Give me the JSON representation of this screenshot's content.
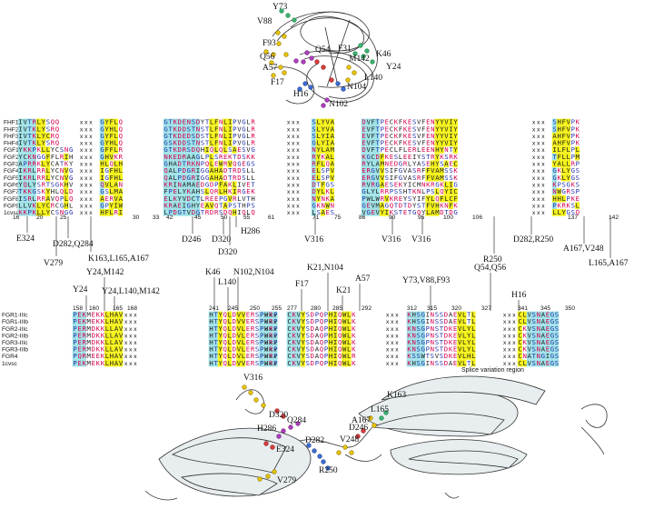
{
  "colors": {
    "yellow": "#f5f219",
    "cyan": "#9fe3e8",
    "red": "#d8004f",
    "blue": "#2233aa",
    "green": "#12884a",
    "ribbon": "#e8eef0"
  },
  "top_structure": {
    "labels": [
      "Y73",
      "V88",
      "F93",
      "Q54",
      "F31",
      "K46",
      "Q56",
      "A57",
      "M142",
      "Y24",
      "L140",
      "F17",
      "H16",
      "N104",
      "N102"
    ]
  },
  "fgf_block": {
    "rows": [
      "FHF1",
      "FHF2",
      "FHF3",
      "FHF4",
      "FGF1",
      "FGF2",
      "FGF3",
      "FGF4",
      "FGF5",
      "FGF6",
      "FGF7",
      "FGF8",
      "FGF9",
      "1cvsa"
    ],
    "sep": "x x x",
    "numbers": [
      "16",
      "20",
      "25",
      "30",
      "33",
      "42",
      "45",
      "50",
      "55",
      "61",
      "71",
      "75",
      "86",
      "90",
      "95",
      "100",
      "106",
      "137",
      "142"
    ],
    "below_labels": [
      "E324",
      "V279",
      "D282,Q284",
      "K163,L165,A167",
      "D246",
      "D320",
      "D320",
      "H286",
      "V316",
      "V316",
      "V316",
      "R250",
      "D282,R250",
      "A167,V248",
      "L165,A167"
    ]
  },
  "fgfr_block": {
    "rows": [
      "FGR1-IIIc",
      "FGR1-IIIb",
      "FGR2-IIIc",
      "FGR2-IIIb",
      "FGR3-IIIc",
      "FGR3-IIIb",
      "FGR4",
      "1cvsc"
    ],
    "sep": "x x x",
    "numbers": [
      "158",
      "160",
      "165",
      "168",
      "241",
      "245",
      "250",
      "255",
      "277",
      "280",
      "285",
      "292",
      "312",
      "315",
      "320",
      "327",
      "341",
      "345",
      "350"
    ],
    "above_labels": [
      "Y24",
      "Y24,M142",
      "Y24,L140,M142",
      "K46",
      "L140",
      "N102,N104",
      "F17",
      "K21,N104",
      "K21",
      "A57",
      "Y73,V88,F93",
      "Q54,Q56",
      "H16"
    ],
    "splice_text": "Splice variation region"
  },
  "bottom_structure": {
    "labels": [
      "V316",
      "D320",
      "H286",
      "Q284",
      "E324",
      "V279",
      "D282",
      "R250",
      "V248",
      "D246",
      "A167",
      "L165",
      "K163"
    ]
  },
  "sequences": {
    "fgf": [
      [
        "IVTRLYSQQ",
        "GYFLQ",
        "GTKDENSDYTLFNLIPVGLR",
        "SLYVA",
        "DVFTPECKFKESVFENYYVIY",
        "SHFVPK"
      ],
      [
        "IVTKLYSRQ",
        "GYHLQ",
        "GTKDDSTNSTLFNLIPVGLR",
        "SLYVA",
        "EVFTPECKFKESVFENYYVIY",
        "SHFVPK"
      ],
      [
        "IVTKLYCRQ",
        "GYFLQ",
        "GTKDEDSDSTLFNLIPVGLR",
        "SLYIA",
        "EVFTPECKFKESVFENYYVIY",
        "AHFVPK"
      ],
      [
        "IVTKLYSRQ",
        "GYHLQ",
        "GSKDDSTNSTLFNLIPVGLR",
        "GLYIA",
        "EVFTPECKFKESVFENYYVIY",
        "AHFVPK"
      ],
      [
        "YKKPKLLYCSNG",
        "GFFLR",
        "GTKDRSDQHIQLQLSAESVG",
        "NYLAM",
        "DVFTPECLFLERLEENHYNTY",
        "ILFLPL"
      ],
      [
        "YCKNGGFFLRIH",
        "GHVKR",
        "NKEDRAAGLPLSREKTDSKK",
        "RYKAL",
        "KGCDFKESLEEIYSTRYKSRK",
        "TFLLPM"
      ],
      [
        "APRRKLYCATKY",
        "HLQLH",
        "GHADTRKNPQLEWRVQGEGS",
        "RFLQA",
        "RYLAMNEDGRLYASEHYSAEC",
        "YALLRP"
      ],
      [
        "IKRLRRLYCNVG",
        "IGFHL",
        "QALPDGRIGGAHADTRDSLL",
        "ELSPV",
        "ERGVVSIFGVASRFFVAMSSK",
        "GKLYGS"
      ],
      [
        "IKRLRRLYCNVG",
        "IGFHL",
        "QALPDGRIGGAHADTRDSLL",
        "ELSPV",
        "ERGVVSIFGVASRFFVAMSSK",
        "GKLYGS"
      ],
      [
        "YQLYSRTSGKHV",
        "QVLAN",
        "KRINAMAEDGDPFAKLIVET",
        "DTFGS",
        "RVRGAESEKYICMNKRGKLIG",
        "KPSGKS"
      ],
      [
        "TKKGSKYHLQLD",
        "GSLMA",
        "FPELYKAHSLQRLHKIRGEK",
        "DYLKL",
        "GLYLRRPSSHTKNLPSLQYIC",
        "NWGRSP"
      ],
      [
        "ISRLRRAVQPLQ",
        "AERVA",
        "ELKYVDCTLREEPGVRLVTH",
        "NYNKA",
        "PWLWRVKREYSYIFYLQFLCF",
        "HHLPKE"
      ],
      [
        "LLVKLYCRCGHL",
        "GPYIW",
        "KRAEIGHYEAVQTAPSTHPS",
        "GKNWN",
        "GEVMAGQTDTDYSTFVHKNFK",
        "PKRKSL"
      ],
      [
        "KKPKLLYCSNGG",
        "HFLRI",
        "LPDGTVDGTRDRSDQHIQLQ",
        "LSAES",
        "VGEVYIKSTETGQYLAMDTDG",
        "LLYGSQ"
      ]
    ],
    "fgfr": [
      [
        "PEKMEKKLHAV",
        "HTYQLDVVERSPHRP",
        "CKVYSDPQPHIQWLK",
        "KHSGINSSDAEVLTL",
        "CLVSNAEGS"
      ],
      [
        "PEKMEKKLHAV",
        "HTYQLDVVERSPHRP",
        "CKVYSDPQPHIQWLK",
        "KHSGINSSDAEVLTL",
        "CLVSNAEGS"
      ],
      [
        "PERMDKKLLAV",
        "HTYQLDVLERSPHRP",
        "CKVYSDAQPHIQWLK",
        "KNSGPNSTDKEVLYL",
        "CKVSNAEGS"
      ],
      [
        "PERMDKKLLAV",
        "HTYQLDVLERSPHRP",
        "CKVYSDAQPHIQWLK",
        "KNSGPNSTDKEVLYL",
        "CKVSNAEGS"
      ],
      [
        "PERMDKKLLAV",
        "HTYQLDVLERSPHRP",
        "CKVYSDAQPHIQWLK",
        "KNSGPNSTDKEVLYL",
        "CKVSNAEGS"
      ],
      [
        "PERMDKKLLAV",
        "HTYQLDVLERSPHRP",
        "CKVYSDAQPHIQWLK",
        "KNSGPNSTDKEVLYL",
        "CKVSNAEGS"
      ],
      [
        "PQRMEEKLHAV",
        "HTYQLDVLERSPHRP",
        "CKVYSDAQPHIQWLR",
        "KSSWTSVSDKEVLHL",
        "CNATNGIGS"
      ],
      [
        "PEKMEKKLHAV",
        "HTYQLDVVERSPHRP",
        "CKVYSDPQPHIQWLK",
        "KHSGINSSDAEVLTL",
        "CLVSNAEGS"
      ]
    ]
  }
}
